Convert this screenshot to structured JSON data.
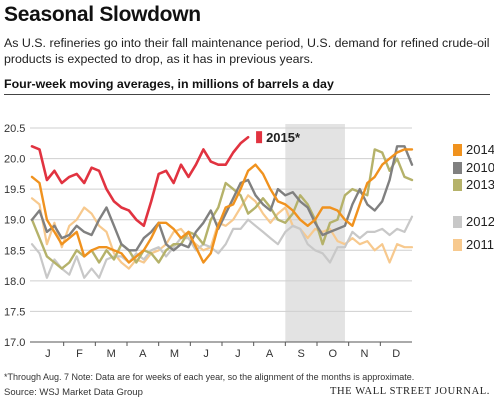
{
  "header": {
    "title": "Seasonal Slowdown",
    "subtitle": "As U.S. refineries go into their fall maintenance period, U.S. demand for refined crude-oil products is expected to drop, as it has in previous years.",
    "units": "Four-week moving averages, in millions of barrels a day"
  },
  "footer": {
    "footnote": "*Through Aug. 7   Note: Data are for weeks of each year, so the alignment of the months is approximate.",
    "source": "Source: WSJ Market Data Group",
    "brand": "THE WALL STREET JOURNAL."
  },
  "chart_data": {
    "type": "line",
    "title": "Seasonal Slowdown",
    "ylabel": "Four-week moving averages, in millions of barrels a day",
    "xlabel": "",
    "x_axis": {
      "type": "week_of_year",
      "range": [
        1,
        52
      ],
      "tick_labels": [
        "J",
        "F",
        "M",
        "A",
        "M",
        "J",
        "J",
        "A",
        "S",
        "O",
        "N",
        "D"
      ]
    },
    "y_axis": {
      "range": [
        17.0,
        20.5
      ],
      "ticks": [
        "17.0",
        "17.5",
        "18.0",
        "18.5",
        "19.0",
        "19.5",
        "20.0",
        "20.5"
      ]
    },
    "grid": true,
    "shaded_period": {
      "from_week": 35,
      "to_week": 43,
      "color": "#e3e3e3"
    },
    "series": [
      {
        "name": "2014",
        "color": "#f0921e",
        "width": 2.4,
        "values": [
          19.7,
          19.6,
          19.0,
          18.8,
          18.6,
          18.7,
          18.8,
          18.4,
          18.5,
          18.55,
          18.55,
          18.5,
          18.45,
          18.3,
          18.4,
          18.5,
          18.7,
          18.95,
          18.95,
          18.85,
          18.7,
          18.8,
          18.55,
          18.3,
          18.45,
          18.9,
          19.2,
          19.25,
          19.5,
          19.8,
          19.9,
          19.75,
          19.5,
          19.3,
          19.25,
          19.15,
          19.0,
          18.9,
          19.0,
          19.2,
          19.2,
          19.15,
          19.0,
          18.9,
          19.25,
          19.6,
          19.7,
          19.9,
          20.0,
          20.1,
          20.15,
          20.15
        ]
      },
      {
        "name": "2010",
        "color": "#808080",
        "width": 2.4,
        "values": [
          19.0,
          19.15,
          18.8,
          18.9,
          18.7,
          18.75,
          18.9,
          18.8,
          18.75,
          19.0,
          19.2,
          18.9,
          18.6,
          18.5,
          18.5,
          18.7,
          18.8,
          18.95,
          18.6,
          18.5,
          18.6,
          18.55,
          18.8,
          18.95,
          19.15,
          18.85,
          19.1,
          19.35,
          19.6,
          19.65,
          19.4,
          19.25,
          19.15,
          19.5,
          19.4,
          19.45,
          19.3,
          19.2,
          18.95,
          18.75,
          18.8,
          18.85,
          18.9,
          19.25,
          19.5,
          19.25,
          19.15,
          19.3,
          19.65,
          20.2,
          20.2,
          19.9
        ]
      },
      {
        "name": "2013",
        "color": "#b5b26a",
        "width": 2.4,
        "values": [
          19.0,
          18.7,
          18.4,
          18.3,
          18.2,
          18.3,
          18.5,
          18.4,
          18.5,
          18.3,
          18.5,
          18.35,
          18.6,
          18.5,
          18.3,
          18.5,
          18.45,
          18.3,
          18.5,
          18.6,
          18.6,
          18.8,
          18.75,
          18.6,
          19.0,
          19.2,
          19.6,
          19.5,
          19.4,
          19.1,
          19.2,
          19.35,
          19.2,
          19.0,
          18.95,
          19.1,
          19.4,
          19.25,
          19.0,
          18.6,
          18.95,
          19.0,
          19.4,
          19.5,
          19.45,
          19.4,
          20.15,
          20.1,
          19.8,
          20.0,
          19.7,
          19.65
        ]
      },
      {
        "name": "2012",
        "color": "#c8c8c8",
        "width": 2.2,
        "values": [
          18.6,
          18.45,
          18.05,
          18.35,
          18.2,
          18.1,
          18.4,
          18.05,
          18.2,
          18.05,
          18.35,
          18.4,
          18.4,
          18.3,
          18.45,
          18.35,
          18.5,
          18.55,
          18.4,
          18.55,
          18.7,
          18.7,
          18.5,
          18.6,
          18.55,
          18.45,
          18.6,
          18.85,
          18.85,
          19.0,
          18.9,
          18.8,
          18.7,
          18.6,
          18.8,
          18.9,
          18.85,
          18.6,
          18.5,
          18.45,
          18.3,
          18.55,
          18.55,
          18.8,
          18.7,
          18.8,
          18.8,
          18.85,
          18.75,
          18.85,
          18.8,
          19.05
        ]
      },
      {
        "name": "2011",
        "color": "#f7c98e",
        "width": 2.2,
        "values": [
          19.35,
          19.25,
          18.6,
          18.95,
          18.55,
          18.9,
          19.0,
          19.2,
          19.1,
          18.9,
          18.8,
          18.45,
          18.3,
          18.2,
          18.35,
          18.3,
          18.45,
          18.5,
          18.6,
          18.8,
          18.85,
          18.7,
          18.6,
          18.5,
          18.55,
          18.95,
          18.9,
          19.0,
          19.2,
          19.4,
          19.3,
          19.1,
          18.95,
          19.1,
          19.2,
          18.9,
          18.85,
          18.7,
          18.85,
          18.8,
          18.85,
          18.65,
          18.6,
          18.7,
          18.6,
          18.65,
          18.5,
          18.6,
          18.3,
          18.6,
          18.55,
          18.55
        ]
      },
      {
        "name": "2015",
        "label": "2015*",
        "color": "#e13340",
        "width": 2.6,
        "values": [
          20.2,
          20.15,
          19.65,
          19.8,
          19.6,
          19.7,
          19.75,
          19.6,
          19.85,
          19.8,
          19.5,
          19.3,
          19.2,
          19.15,
          19.0,
          18.9,
          19.3,
          19.75,
          19.8,
          19.6,
          19.9,
          19.7,
          19.9,
          20.15,
          19.95,
          19.9,
          19.9,
          20.1,
          20.25,
          20.35
        ]
      }
    ]
  }
}
